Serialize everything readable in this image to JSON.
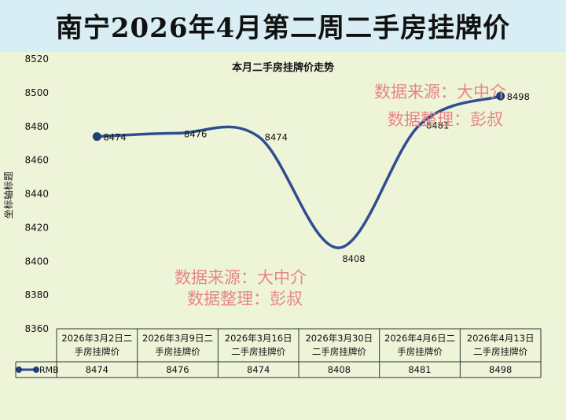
{
  "header": {
    "title": "南宁2026年4月第二周二手房挂牌价"
  },
  "colors": {
    "line": "#2e4e8f",
    "marker": "#1f3e7a",
    "watermark": "#e8858a",
    "header_bg": "#d8eef4",
    "panel_bg": "#eef4d8"
  },
  "watermarks": {
    "upper": {
      "line1": "数据来源：大中介",
      "line2": "数据整理：彭叔"
    },
    "lower": {
      "line1": "数据来源：大中介",
      "line2": "数据整理：彭叔"
    }
  },
  "chart_data": {
    "type": "line",
    "title": "本月二手房挂牌价走势",
    "ylabel": "坐标轴标题",
    "xlabel": "",
    "categories": [
      [
        "2026年3月2日二",
        "手房挂牌价"
      ],
      [
        "2026年3月9日二",
        "手房挂牌价"
      ],
      [
        "2026年3月16日",
        "二手房挂牌价"
      ],
      [
        "2026年3月30日",
        "二手房挂牌价"
      ],
      [
        "2026年4月6日二",
        "手房挂牌价"
      ],
      [
        "2026年4月13日",
        "二手房挂牌价"
      ]
    ],
    "series": [
      {
        "name": "RMB",
        "values": [
          8474,
          8476,
          8474,
          8408,
          8481,
          8498
        ],
        "smooth": true,
        "markers_on": [
          0,
          5
        ]
      }
    ],
    "ylim": [
      8360,
      8520
    ],
    "yticks": [
      8360,
      8380,
      8400,
      8420,
      8440,
      8460,
      8480,
      8500,
      8520
    ],
    "grid": false,
    "data_labels": true,
    "legend": "table-row"
  }
}
